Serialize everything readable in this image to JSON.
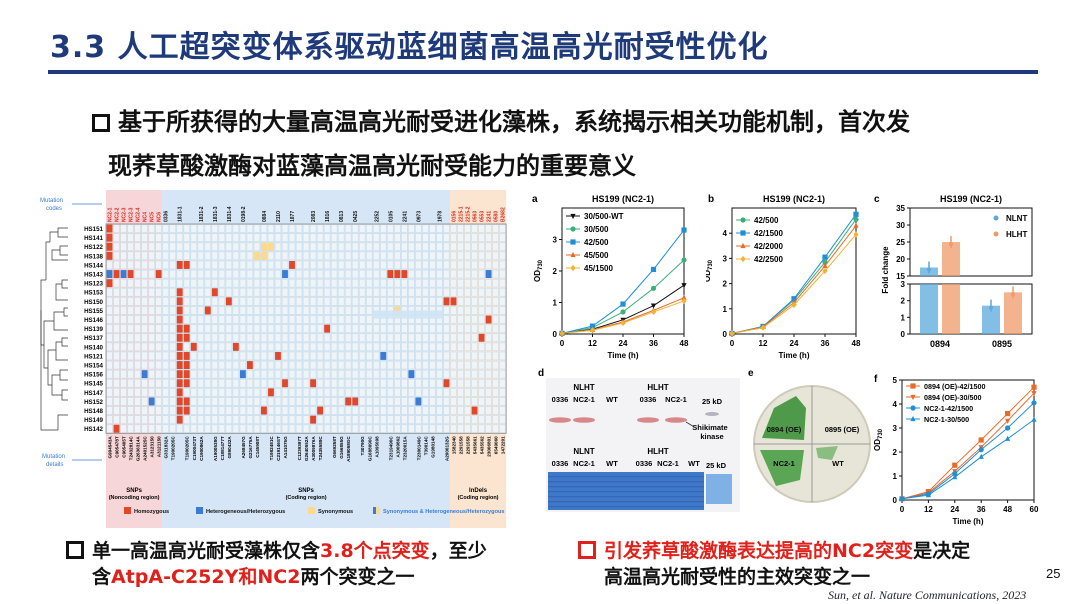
{
  "title": "3.3 人工超突变体系驱动蓝细菌高温高光耐受性优化",
  "main_point_line1": "基于所获得的大量高温高光耐受进化藻株，系统揭示相关功能机制，首次发",
  "main_point_line2": "现荞草酸激酶对蓝藻高温高光耐受能力的重要意义",
  "heatmap": {
    "mutation_codes_label": "Mutation codes",
    "mutation_details_label": "Mutation details",
    "strains": [
      "HS151",
      "HS141",
      "HS122",
      "HS138",
      "HS144",
      "HS143",
      "HS123",
      "HS153",
      "HS150",
      "HS155",
      "HS146",
      "HS139",
      "HS137",
      "HS140",
      "HS121",
      "HS154",
      "HS156",
      "HS145",
      "HS147",
      "HS152",
      "HS148",
      "HS149",
      "HS142"
    ],
    "codes_a": [
      "NC2-1",
      "NC2-2",
      "NC2-3",
      "NC2-3",
      "NC2-4",
      "NC4",
      "NC5",
      "NC6"
    ],
    "codes_b": [
      "0336",
      "1831-1",
      "1831-2",
      "1831-3",
      "1831-4",
      "0198-2",
      "0884",
      "2110",
      "1877",
      "2083",
      "1816",
      "0813",
      "0425",
      "2252",
      "0105",
      "2241",
      "0973",
      "1978"
    ],
    "codes_c": [
      "0156",
      "2215-1",
      "2215-2",
      "0563",
      "0553",
      "2241",
      "0580",
      "B2682"
    ],
    "details_a": [
      "G904543A",
      "C905478T",
      "C905405T",
      "T2432814C",
      "G2636314A",
      "A2401525C",
      "A3123150",
      "A3121150"
    ],
    "details_b": [
      "G331832A",
      "T1900205C",
      "T1900205C",
      "C1900473T",
      "C1900862A",
      "A1900538G",
      "C1881477T",
      "G890432A",
      "A268457G",
      "G216775A",
      "C145908T",
      "T1982481C",
      "C219146ST",
      "A141075G",
      "C1239397T",
      "G2640552A",
      "A3009876A",
      "T2435588C",
      "G669258T",
      "G166855G",
      "A189058GC",
      "T30790G",
      "G1688090C",
      "A1095098",
      "T2319490C",
      "A1009862",
      "T2320015A",
      "T2300149C",
      "T39014C",
      "G1980148",
      "A2000132G"
    ],
    "details_c": [
      "1582340",
      "2291558",
      "2291558",
      "5435661",
      "5435562",
      "23006801",
      "6549060",
      "1472201"
    ],
    "group_labels": [
      "SNPs",
      "SNPs",
      "InDels"
    ],
    "group_sublabels": [
      "(Noncoding region)",
      "(Coding region)",
      "(Coding region)"
    ],
    "legend": [
      "Homozygous",
      "Heterogeneous/Heterozygous",
      "Synonymous",
      "Synonymous & Heterogeneous/Heterozygous"
    ],
    "colors": {
      "homozygous": "#e2472a",
      "heterogeneous": "#3a7bd5",
      "synonymous": "#ffd98a",
      "grid": "#c7dbe8",
      "pink": "#f6d6d8",
      "blue": "#d6e6f6",
      "peach": "#fbe5d0"
    }
  },
  "chart_data": [
    {
      "type": "line",
      "panel": "a",
      "title": "HS199 (NC2-1)",
      "xlabel": "Time (h)",
      "ylabel": "OD730",
      "x": [
        0,
        12,
        24,
        36,
        48
      ],
      "xlim": [
        0,
        48
      ],
      "ylim": [
        0,
        4
      ],
      "yticks": [
        0,
        1,
        2,
        3
      ],
      "series": [
        {
          "name": "30/500-WT",
          "color": "#111111",
          "marker": "tri-down",
          "values": [
            0.02,
            0.15,
            0.45,
            0.9,
            1.55
          ]
        },
        {
          "name": "30/500",
          "color": "#3bb07a",
          "marker": "circle",
          "values": [
            0.02,
            0.2,
            0.7,
            1.45,
            2.35
          ]
        },
        {
          "name": "42/500",
          "color": "#1f8fd6",
          "marker": "square",
          "values": [
            0.02,
            0.25,
            0.95,
            2.05,
            3.3
          ]
        },
        {
          "name": "45/500",
          "color": "#ea6a2a",
          "marker": "tri-up",
          "values": [
            0.02,
            0.13,
            0.38,
            0.75,
            1.15
          ]
        },
        {
          "name": "45/1500",
          "color": "#f3b230",
          "marker": "diamond",
          "values": [
            0.02,
            0.12,
            0.35,
            0.7,
            1.05
          ]
        }
      ]
    },
    {
      "type": "line",
      "panel": "b",
      "title": "HS199 (NC2-1)",
      "xlabel": "Time (h)",
      "ylabel": "OD730",
      "x": [
        0,
        12,
        24,
        36,
        48
      ],
      "xlim": [
        0,
        48
      ],
      "ylim": [
        0,
        5
      ],
      "yticks": [
        0,
        1,
        2,
        3,
        4
      ],
      "series": [
        {
          "name": "42/500",
          "color": "#3bb07a",
          "marker": "circle",
          "values": [
            0.02,
            0.3,
            1.35,
            2.85,
            4.55
          ]
        },
        {
          "name": "42/1500",
          "color": "#1f8fd6",
          "marker": "square",
          "values": [
            0.02,
            0.3,
            1.4,
            3.05,
            4.75
          ]
        },
        {
          "name": "42/2000",
          "color": "#ea6a2a",
          "marker": "tri-up",
          "values": [
            0.02,
            0.28,
            1.25,
            2.7,
            4.3
          ]
        },
        {
          "name": "42/2500",
          "color": "#f3b230",
          "marker": "diamond",
          "values": [
            0.02,
            0.25,
            1.15,
            2.5,
            3.95
          ]
        }
      ]
    },
    {
      "type": "bar",
      "panel": "c",
      "title": "HS199 (NC2-1)",
      "ylabel": "Fold change",
      "categories": [
        "0894",
        "0895"
      ],
      "series": [
        {
          "name": "NLNT",
          "color": "#5aa9dc",
          "values": [
            17.5,
            1.7
          ]
        },
        {
          "name": "HLHT",
          "color": "#ef9a6a",
          "values": [
            25,
            2.5
          ]
        }
      ],
      "yticks_upper": [
        15,
        20,
        25,
        30,
        35
      ],
      "yticks_lower": [
        0,
        1,
        2,
        3
      ]
    },
    {
      "type": "line",
      "panel": "f",
      "xlabel": "Time (h)",
      "ylabel": "OD730",
      "x": [
        0,
        12,
        24,
        36,
        48,
        60
      ],
      "xlim": [
        0,
        60
      ],
      "ylim": [
        0,
        5
      ],
      "yticks": [
        0,
        1,
        2,
        3,
        4,
        5
      ],
      "series": [
        {
          "name": "0894 (OE)-42/1500",
          "color": "#ea6a2a",
          "marker": "square",
          "values": [
            0.05,
            0.35,
            1.45,
            2.5,
            3.6,
            4.7
          ]
        },
        {
          "name": "0894 (OE)-30/500",
          "color": "#ea6a2a",
          "marker": "tri-down",
          "values": [
            0.05,
            0.3,
            1.2,
            2.2,
            3.3,
            4.45
          ]
        },
        {
          "name": "NC2-1-42/1500",
          "color": "#1f8fd6",
          "marker": "circle",
          "values": [
            0.05,
            0.25,
            1.1,
            2.1,
            3.0,
            4.05
          ]
        },
        {
          "name": "NC2-1-30/500",
          "color": "#1f8fd6",
          "marker": "tri-up",
          "values": [
            0.05,
            0.2,
            0.95,
            1.8,
            2.55,
            3.35
          ]
        }
      ]
    }
  ],
  "panel_d": {
    "letter": "d",
    "top_headers": [
      "NLHT",
      "HLHT"
    ],
    "top_lanes": [
      "0336",
      "NC2-1",
      "WT",
      "0336",
      "NC2-1"
    ],
    "marker_top": "25 kD",
    "label_kinase": "Shikimate kinase",
    "bottom_headers": [
      "NLNT",
      "HLHT"
    ],
    "bottom_lanes": [
      "0336",
      "NC2-1",
      "WT",
      "0336",
      "NC2-1",
      "WT"
    ],
    "marker_bottom": "25 kD"
  },
  "panel_e": {
    "letter": "e",
    "quadrants": [
      "0894 (OE)",
      "0895 (OE)",
      "NC2-1",
      "WT"
    ]
  },
  "panel_letters": {
    "a": "a",
    "b": "b",
    "c": "c",
    "f": "f"
  },
  "bottom_left_line1_pre": "单一高温高光耐受藻株仅含",
  "bottom_left_line1_red": "3.8个点突变",
  "bottom_left_line1_post": "，至少",
  "bottom_left_line2_pre": "含",
  "bottom_left_line2_red": "AtpA-C252Y和NC2",
  "bottom_left_line2_post": "两个突变之一",
  "bottom_right_line1_red": "引发荞草酸激酶表达提高的NC2突变",
  "bottom_right_line1_post": "是决定",
  "bottom_right_line2": "高温高光耐受性的主效突变之一",
  "page_number": "25",
  "citation": "Sun, et al. Nature Communications, 2023"
}
